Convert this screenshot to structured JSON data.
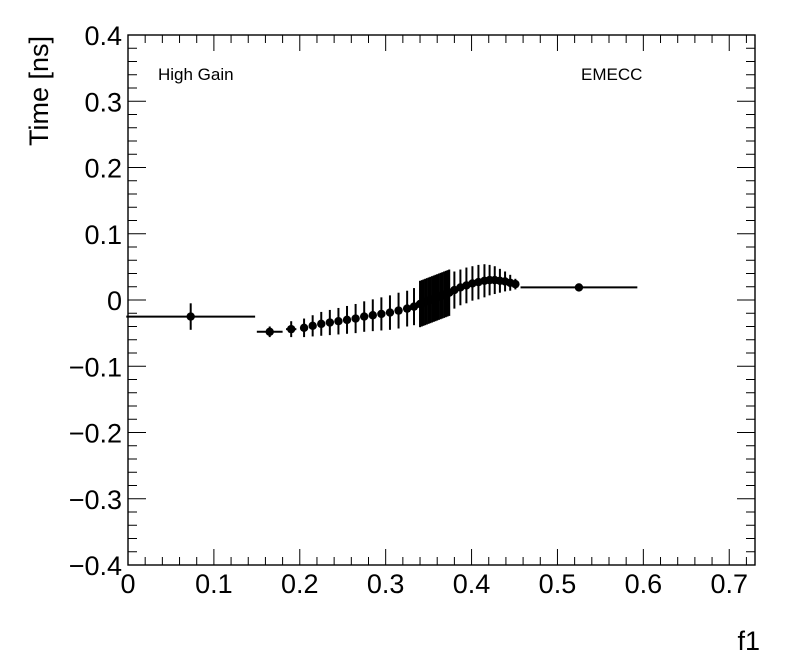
{
  "chart_data": {
    "type": "scatter",
    "title": "",
    "xlabel": "f1",
    "ylabel": "Time [ns]",
    "xlim": [
      0,
      0.73
    ],
    "ylim": [
      -0.4,
      0.4
    ],
    "x_ticks": [
      0,
      0.1,
      0.2,
      0.3,
      0.4,
      0.5,
      0.6,
      0.7
    ],
    "x_tick_labels": [
      "0",
      "0.1",
      "0.2",
      "0.3",
      "0.4",
      "0.5",
      "0.6",
      "0.7"
    ],
    "y_ticks": [
      -0.4,
      -0.3,
      -0.2,
      -0.1,
      0,
      0.1,
      0.2,
      0.3,
      0.4
    ],
    "y_tick_labels": [
      "−0.4",
      "−0.3",
      "−0.2",
      "−0.1",
      "0",
      "0.1",
      "0.2",
      "0.3",
      "0.4"
    ],
    "grid": false,
    "legend": "none",
    "annotations": [
      "High Gain",
      "EMECC"
    ],
    "series": [
      {
        "marker": "filled-circle",
        "color": "#000000",
        "points": [
          {
            "x": 0.073,
            "y": -0.025,
            "xerr": 0.075,
            "yerr": 0.02
          },
          {
            "x": 0.165,
            "y": -0.048,
            "xerr": 0.015,
            "yerr": 0.008
          },
          {
            "x": 0.19,
            "y": -0.044,
            "xerr": 0.006,
            "yerr": 0.012
          },
          {
            "x": 0.205,
            "y": -0.042,
            "xerr": 0.004,
            "yerr": 0.014
          },
          {
            "x": 0.215,
            "y": -0.039,
            "xerr": 0.003,
            "yerr": 0.016
          },
          {
            "x": 0.225,
            "y": -0.036,
            "xerr": 0.003,
            "yerr": 0.018
          },
          {
            "x": 0.235,
            "y": -0.034,
            "xerr": 0.003,
            "yerr": 0.019
          },
          {
            "x": 0.245,
            "y": -0.032,
            "xerr": 0.003,
            "yerr": 0.02
          },
          {
            "x": 0.255,
            "y": -0.03,
            "xerr": 0.003,
            "yerr": 0.021
          },
          {
            "x": 0.265,
            "y": -0.028,
            "xerr": 0.003,
            "yerr": 0.022
          },
          {
            "x": 0.275,
            "y": -0.025,
            "xerr": 0.003,
            "yerr": 0.023
          },
          {
            "x": 0.285,
            "y": -0.023,
            "xerr": 0.003,
            "yerr": 0.024
          },
          {
            "x": 0.295,
            "y": -0.021,
            "xerr": 0.003,
            "yerr": 0.025
          },
          {
            "x": 0.305,
            "y": -0.019,
            "xerr": 0.003,
            "yerr": 0.026
          },
          {
            "x": 0.315,
            "y": -0.016,
            "xerr": 0.003,
            "yerr": 0.027
          },
          {
            "x": 0.325,
            "y": -0.013,
            "xerr": 0.003,
            "yerr": 0.027
          },
          {
            "x": 0.333,
            "y": -0.01,
            "xerr": 0.002,
            "yerr": 0.028
          },
          {
            "x": 0.34,
            "y": -0.006,
            "xerr": 0.001,
            "yerr": 0.035
          },
          {
            "x": 0.342,
            "y": -0.005,
            "xerr": 0.001,
            "yerr": 0.035
          },
          {
            "x": 0.344,
            "y": -0.004,
            "xerr": 0.001,
            "yerr": 0.035
          },
          {
            "x": 0.346,
            "y": -0.003,
            "xerr": 0.001,
            "yerr": 0.035
          },
          {
            "x": 0.348,
            "y": -0.002,
            "xerr": 0.001,
            "yerr": 0.035
          },
          {
            "x": 0.35,
            "y": -0.001,
            "xerr": 0.001,
            "yerr": 0.035
          },
          {
            "x": 0.352,
            "y": 0.0,
            "xerr": 0.001,
            "yerr": 0.035
          },
          {
            "x": 0.354,
            "y": 0.001,
            "xerr": 0.001,
            "yerr": 0.035
          },
          {
            "x": 0.356,
            "y": 0.002,
            "xerr": 0.001,
            "yerr": 0.035
          },
          {
            "x": 0.358,
            "y": 0.003,
            "xerr": 0.001,
            "yerr": 0.035
          },
          {
            "x": 0.36,
            "y": 0.004,
            "xerr": 0.001,
            "yerr": 0.035
          },
          {
            "x": 0.362,
            "y": 0.005,
            "xerr": 0.001,
            "yerr": 0.035
          },
          {
            "x": 0.364,
            "y": 0.006,
            "xerr": 0.001,
            "yerr": 0.035
          },
          {
            "x": 0.366,
            "y": 0.007,
            "xerr": 0.001,
            "yerr": 0.035
          },
          {
            "x": 0.368,
            "y": 0.008,
            "xerr": 0.001,
            "yerr": 0.035
          },
          {
            "x": 0.37,
            "y": 0.009,
            "xerr": 0.001,
            "yerr": 0.035
          },
          {
            "x": 0.372,
            "y": 0.01,
            "xerr": 0.001,
            "yerr": 0.035
          },
          {
            "x": 0.374,
            "y": 0.011,
            "xerr": 0.001,
            "yerr": 0.035
          },
          {
            "x": 0.38,
            "y": 0.015,
            "xerr": 0.003,
            "yerr": 0.028
          },
          {
            "x": 0.387,
            "y": 0.019,
            "xerr": 0.003,
            "yerr": 0.027
          },
          {
            "x": 0.394,
            "y": 0.022,
            "xerr": 0.003,
            "yerr": 0.027
          },
          {
            "x": 0.401,
            "y": 0.025,
            "xerr": 0.003,
            "yerr": 0.026
          },
          {
            "x": 0.408,
            "y": 0.027,
            "xerr": 0.003,
            "yerr": 0.026
          },
          {
            "x": 0.415,
            "y": 0.029,
            "xerr": 0.003,
            "yerr": 0.025
          },
          {
            "x": 0.421,
            "y": 0.03,
            "xerr": 0.003,
            "yerr": 0.023
          },
          {
            "x": 0.427,
            "y": 0.03,
            "xerr": 0.003,
            "yerr": 0.021
          },
          {
            "x": 0.433,
            "y": 0.029,
            "xerr": 0.003,
            "yerr": 0.018
          },
          {
            "x": 0.439,
            "y": 0.028,
            "xerr": 0.003,
            "yerr": 0.015
          },
          {
            "x": 0.445,
            "y": 0.026,
            "xerr": 0.003,
            "yerr": 0.012
          },
          {
            "x": 0.451,
            "y": 0.024,
            "xerr": 0.003,
            "yerr": 0.008
          },
          {
            "x": 0.525,
            "y": 0.019,
            "xerr": 0.068,
            "yerr": 0.006
          }
        ]
      }
    ]
  }
}
